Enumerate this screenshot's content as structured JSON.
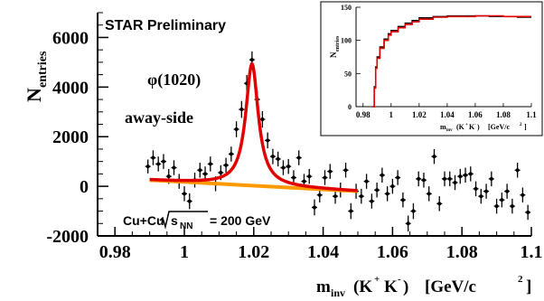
{
  "chart_data": [
    {
      "type": "scatter",
      "title": "",
      "preliminary_label": "STAR Preliminary",
      "particle_label": "φ(1020)",
      "region_label": "away-side",
      "system_label_pre": "Cu+Cu",
      "system_label_sqrt": "s",
      "system_label_sub": "NN",
      "system_label_post": "= 200 GeV",
      "ylabel_main": "N",
      "ylabel_sub": "entries",
      "xlabel_main": "m",
      "xlabel_sub": "inv",
      "xlabel_rest_1": "(K",
      "xlabel_sup_1": "+",
      "xlabel_rest_2": "K",
      "xlabel_sup_2": "-",
      "xlabel_rest_3": ")",
      "xlabel_units": "[GeV/c",
      "xlabel_units_sup": "2",
      "xlabel_units_close": "]",
      "xlim": [
        0.975,
        1.1
      ],
      "ylim": [
        -2000,
        7000
      ],
      "xticks": [
        0.98,
        1,
        1.02,
        1.04,
        1.06,
        1.08,
        1.1
      ],
      "xtick_labels": [
        "0.98",
        "1",
        "1.02",
        "1.04",
        "1.06",
        "1.08",
        "1.1"
      ],
      "yticks": [
        -2000,
        0,
        2000,
        4000,
        6000
      ],
      "ytick_labels": [
        "-2000",
        "0",
        "2000",
        "4000",
        "6000"
      ],
      "points": [
        {
          "x": 0.9895,
          "y": 800,
          "err": 280
        },
        {
          "x": 0.991,
          "y": 1150,
          "err": 300
        },
        {
          "x": 0.9925,
          "y": 900,
          "err": 300
        },
        {
          "x": 0.994,
          "y": 1000,
          "err": 300
        },
        {
          "x": 0.9955,
          "y": 400,
          "err": 300
        },
        {
          "x": 0.997,
          "y": 750,
          "err": 300
        },
        {
          "x": 0.9985,
          "y": 200,
          "err": 300
        },
        {
          "x": 1.0,
          "y": -300,
          "err": 300
        },
        {
          "x": 1.0015,
          "y": -600,
          "err": 320
        },
        {
          "x": 1.003,
          "y": 250,
          "err": 300
        },
        {
          "x": 1.0045,
          "y": 650,
          "err": 300
        },
        {
          "x": 1.006,
          "y": 500,
          "err": 300
        },
        {
          "x": 1.0075,
          "y": 900,
          "err": 300
        },
        {
          "x": 1.009,
          "y": 100,
          "err": 300
        },
        {
          "x": 1.0105,
          "y": 550,
          "err": 300
        },
        {
          "x": 1.012,
          "y": 850,
          "err": 300
        },
        {
          "x": 1.0135,
          "y": 1300,
          "err": 300
        },
        {
          "x": 1.015,
          "y": 2300,
          "err": 320
        },
        {
          "x": 1.0165,
          "y": 3100,
          "err": 340
        },
        {
          "x": 1.018,
          "y": 4150,
          "err": 340
        },
        {
          "x": 1.0195,
          "y": 5100,
          "err": 340
        },
        {
          "x": 1.021,
          "y": 3500,
          "err": 340
        },
        {
          "x": 1.0225,
          "y": 2700,
          "err": 330
        },
        {
          "x": 1.024,
          "y": 1850,
          "err": 320
        },
        {
          "x": 1.0255,
          "y": 1200,
          "err": 310
        },
        {
          "x": 1.027,
          "y": 1100,
          "err": 300
        },
        {
          "x": 1.0285,
          "y": 750,
          "err": 300
        },
        {
          "x": 1.03,
          "y": 800,
          "err": 300
        },
        {
          "x": 1.0315,
          "y": 350,
          "err": 300
        },
        {
          "x": 1.033,
          "y": 1150,
          "err": 300
        },
        {
          "x": 1.0345,
          "y": 200,
          "err": 300
        },
        {
          "x": 1.036,
          "y": 400,
          "err": 300
        },
        {
          "x": 1.0375,
          "y": -850,
          "err": 320
        },
        {
          "x": 1.039,
          "y": -350,
          "err": 300
        },
        {
          "x": 1.0405,
          "y": 350,
          "err": 300
        },
        {
          "x": 1.042,
          "y": 600,
          "err": 300
        },
        {
          "x": 1.0435,
          "y": -400,
          "err": 300
        },
        {
          "x": 1.045,
          "y": -150,
          "err": 300
        },
        {
          "x": 1.0465,
          "y": 650,
          "err": 300
        },
        {
          "x": 1.048,
          "y": -1000,
          "err": 320
        },
        {
          "x": 1.0495,
          "y": -200,
          "err": 300
        },
        {
          "x": 1.051,
          "y": -400,
          "err": 300
        },
        {
          "x": 1.0525,
          "y": 200,
          "err": 300
        },
        {
          "x": 1.054,
          "y": -600,
          "err": 300
        },
        {
          "x": 1.0555,
          "y": -150,
          "err": 300
        },
        {
          "x": 1.057,
          "y": 450,
          "err": 300
        },
        {
          "x": 1.0585,
          "y": -300,
          "err": 300
        },
        {
          "x": 1.06,
          "y": 0,
          "err": 300
        },
        {
          "x": 1.0615,
          "y": 350,
          "err": 300
        },
        {
          "x": 1.063,
          "y": -550,
          "err": 300
        },
        {
          "x": 1.0645,
          "y": -1500,
          "err": 320
        },
        {
          "x": 1.066,
          "y": -1000,
          "err": 320
        },
        {
          "x": 1.0675,
          "y": 300,
          "err": 300
        },
        {
          "x": 1.069,
          "y": 250,
          "err": 300
        },
        {
          "x": 1.0705,
          "y": -300,
          "err": 300
        },
        {
          "x": 1.072,
          "y": 1200,
          "err": 300
        },
        {
          "x": 1.0735,
          "y": -700,
          "err": 300
        },
        {
          "x": 1.075,
          "y": 300,
          "err": 300
        },
        {
          "x": 1.0765,
          "y": 300,
          "err": 300
        },
        {
          "x": 1.078,
          "y": 150,
          "err": 300
        },
        {
          "x": 1.0795,
          "y": 400,
          "err": 300
        },
        {
          "x": 1.081,
          "y": 450,
          "err": 300
        },
        {
          "x": 1.0825,
          "y": 500,
          "err": 300
        },
        {
          "x": 1.084,
          "y": -100,
          "err": 300
        },
        {
          "x": 1.0855,
          "y": -400,
          "err": 300
        },
        {
          "x": 1.087,
          "y": -200,
          "err": 300
        },
        {
          "x": 1.0885,
          "y": 300,
          "err": 300
        },
        {
          "x": 1.09,
          "y": -800,
          "err": 300
        },
        {
          "x": 1.0915,
          "y": -550,
          "err": 300
        },
        {
          "x": 1.093,
          "y": -200,
          "err": 300
        },
        {
          "x": 1.0945,
          "y": -800,
          "err": 300
        },
        {
          "x": 1.096,
          "y": 650,
          "err": 300
        },
        {
          "x": 1.0975,
          "y": -350,
          "err": 300
        },
        {
          "x": 1.099,
          "y": -1050,
          "err": 300
        }
      ],
      "fit": {
        "color": "#e00000",
        "x_range": [
          0.99,
          1.05
        ],
        "peak_x": 1.0195,
        "peak_height": 4900,
        "half_width": 0.0022,
        "background_line": [
          [
            0.99,
            250
          ],
          [
            1.05,
            -200
          ]
        ]
      },
      "background": {
        "color": "#ff9900",
        "line": [
          [
            0.99,
            250
          ],
          [
            1.05,
            -200
          ]
        ]
      }
    },
    {
      "type": "line",
      "title": "",
      "ylabel_main": "N",
      "ylabel_sub": "entries",
      "xlabel_main": "m",
      "xlabel_sub": "inv",
      "xlabel_rest": "(K",
      "xlabel_sup_1": "+",
      "xlabel_rest_2": "K",
      "xlabel_sup_2": "-",
      "xlabel_rest_3": ")",
      "xlabel_units": "[GeV/c",
      "xlabel_units_sup": "2",
      "xlabel_units_close": "]",
      "xlim": [
        0.975,
        1.1
      ],
      "ylim": [
        0,
        150
      ],
      "xticks": [
        0.98,
        1,
        1.02,
        1.04,
        1.06,
        1.08,
        1.1
      ],
      "xtick_labels": [
        "0.98",
        "1",
        "1.02",
        "1.04",
        "1.06",
        "1.08",
        "1.1"
      ],
      "yticks": [
        0,
        50,
        100,
        150
      ],
      "ytick_labels": [
        "0",
        "50",
        "100",
        "150"
      ],
      "histogram_black": [
        [
          0.987,
          0
        ],
        [
          0.988,
          30
        ],
        [
          0.989,
          60
        ],
        [
          0.99,
          75
        ],
        [
          0.992,
          90
        ],
        [
          0.995,
          102
        ],
        [
          0.998,
          110
        ],
        [
          1.0,
          115
        ],
        [
          1.005,
          121
        ],
        [
          1.01,
          126
        ],
        [
          1.015,
          130
        ],
        [
          1.02,
          134
        ],
        [
          1.03,
          136
        ],
        [
          1.04,
          137
        ],
        [
          1.05,
          137
        ],
        [
          1.06,
          137
        ],
        [
          1.07,
          136
        ],
        [
          1.08,
          136
        ],
        [
          1.09,
          135
        ],
        [
          1.1,
          135
        ]
      ],
      "histogram_red": [
        [
          0.987,
          0
        ],
        [
          0.988,
          28
        ],
        [
          0.989,
          58
        ],
        [
          0.99,
          73
        ],
        [
          0.992,
          88
        ],
        [
          0.995,
          100
        ],
        [
          0.998,
          108
        ],
        [
          1.0,
          113
        ],
        [
          1.005,
          119
        ],
        [
          1.01,
          124
        ],
        [
          1.015,
          128
        ],
        [
          1.02,
          132
        ],
        [
          1.03,
          135
        ],
        [
          1.04,
          136
        ],
        [
          1.05,
          136
        ],
        [
          1.06,
          137
        ],
        [
          1.07,
          137
        ],
        [
          1.08,
          136
        ],
        [
          1.09,
          136
        ],
        [
          1.1,
          136
        ]
      ]
    }
  ]
}
